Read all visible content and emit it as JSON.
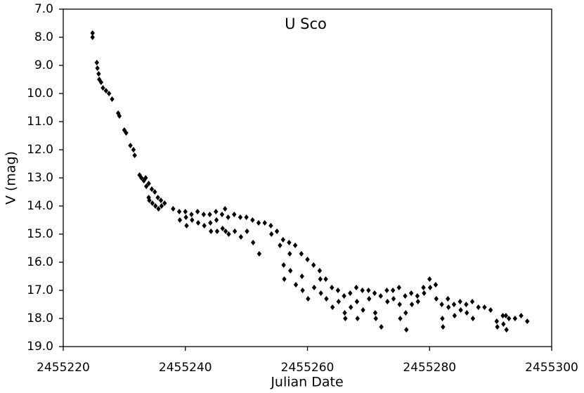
{
  "chart_data": {
    "type": "scatter",
    "title": "U Sco",
    "x_label": "Julian Date",
    "y_label": "V (mag)",
    "color": "#000000",
    "x": [
      2455224.8,
      2455224.8,
      2455225.5,
      2455225.6,
      2455225.8,
      2455225.9,
      2455226.2,
      2455226.5,
      2455227.0,
      2455227.5,
      2455228.0,
      2455229.0,
      2455229.2,
      2455230.0,
      2455230.3,
      2455231.0,
      2455231.5,
      2455231.7,
      2455232.5,
      2455232.8,
      2455233.2,
      2455233.5,
      2455233.6,
      2455234.0,
      2455234.0,
      2455234.1,
      2455234.5,
      2455234.6,
      2455235.0,
      2455235.1,
      2455235.5,
      2455235.6,
      2455236.0,
      2455236.1,
      2455236.6,
      2455238.0,
      2455239.0,
      2455239.1,
      2455240.0,
      2455240.1,
      2455240.2,
      2455241.0,
      2455241.1,
      2455242.0,
      2455242.1,
      2455243.0,
      2455243.1,
      2455244.0,
      2455244.1,
      2455244.2,
      2455245.0,
      2455245.1,
      2455245.2,
      2455246.0,
      2455246.1,
      2455246.5,
      2455246.6,
      2455247.0,
      2455247.1,
      2455248.0,
      2455248.1,
      2455249.0,
      2455249.1,
      2455250.0,
      2455250.1,
      2455251.0,
      2455251.1,
      2455252.0,
      2455252.1,
      2455253.0,
      2455254.0,
      2455254.1,
      2455255.0,
      2455255.5,
      2455256.0,
      2455256.1,
      2455256.2,
      2455257.0,
      2455257.1,
      2455257.2,
      2455258.0,
      2455258.1,
      2455259.0,
      2455259.1,
      2455259.2,
      2455260.0,
      2455260.1,
      2455261.0,
      2455261.1,
      2455262.0,
      2455262.1,
      2455262.2,
      2455263.0,
      2455263.1,
      2455264.0,
      2455264.1,
      2455265.0,
      2455265.1,
      2455266.0,
      2455266.1,
      2455266.2,
      2455267.0,
      2455267.1,
      2455268.0,
      2455268.1,
      2455268.2,
      2455269.0,
      2455269.1,
      2455270.0,
      2455270.1,
      2455271.0,
      2455271.1,
      2455271.2,
      2455272.0,
      2455272.1,
      2455273.0,
      2455273.1,
      2455274.0,
      2455274.1,
      2455275.0,
      2455275.1,
      2455275.2,
      2455276.0,
      2455276.1,
      2455276.2,
      2455277.0,
      2455277.1,
      2455278.0,
      2455278.1,
      2455279.0,
      2455279.1,
      2455280.0,
      2455280.1,
      2455281.0,
      2455281.1,
      2455282.0,
      2455282.1,
      2455282.2,
      2455283.0,
      2455283.1,
      2455284.0,
      2455284.1,
      2455285.0,
      2455285.1,
      2455286.0,
      2455286.1,
      2455287.0,
      2455287.1,
      2455288.0,
      2455289.0,
      2455290.0,
      2455291.0,
      2455291.1,
      2455292.0,
      2455292.1,
      2455292.5,
      2455292.6,
      2455293.0,
      2455294.0,
      2455295.0,
      2455296.0
    ],
    "values": [
      7.85,
      8.0,
      8.9,
      9.1,
      9.3,
      9.5,
      9.6,
      9.8,
      9.9,
      10.0,
      10.2,
      10.7,
      10.8,
      11.3,
      11.4,
      11.85,
      12.0,
      12.2,
      12.9,
      13.0,
      13.1,
      13.0,
      13.3,
      13.2,
      13.7,
      13.8,
      13.4,
      13.9,
      13.5,
      14.0,
      13.7,
      14.1,
      13.8,
      14.0,
      13.9,
      14.1,
      14.2,
      14.5,
      14.2,
      14.4,
      14.7,
      14.3,
      14.5,
      14.2,
      14.6,
      14.3,
      14.7,
      14.3,
      14.6,
      14.9,
      14.2,
      14.5,
      14.9,
      14.3,
      14.8,
      14.1,
      14.9,
      14.4,
      15.0,
      14.3,
      14.9,
      14.4,
      15.1,
      14.4,
      14.9,
      14.5,
      15.3,
      14.6,
      15.7,
      14.6,
      14.7,
      15.0,
      14.9,
      15.4,
      15.2,
      16.1,
      16.6,
      15.3,
      15.7,
      16.3,
      15.4,
      16.8,
      15.7,
      16.5,
      17.0,
      15.9,
      17.3,
      16.1,
      16.9,
      16.3,
      16.6,
      17.1,
      16.6,
      17.3,
      16.9,
      17.6,
      17.0,
      17.4,
      17.2,
      17.8,
      18.0,
      17.1,
      17.6,
      16.9,
      17.4,
      18.0,
      17.0,
      17.7,
      17.0,
      17.3,
      17.1,
      17.8,
      18.0,
      17.2,
      18.3,
      17.0,
      17.4,
      17.0,
      17.3,
      16.9,
      17.5,
      18.0,
      17.2,
      17.8,
      18.4,
      17.1,
      17.5,
      17.2,
      17.4,
      16.9,
      17.1,
      16.6,
      16.9,
      16.8,
      17.3,
      17.5,
      18.0,
      18.3,
      17.3,
      17.6,
      17.5,
      17.9,
      17.4,
      17.7,
      17.5,
      17.8,
      17.4,
      18.0,
      17.6,
      17.6,
      17.7,
      18.1,
      18.3,
      17.9,
      18.2,
      17.9,
      18.4,
      18.0,
      18.0,
      17.9,
      18.1
    ],
    "xlim": [
      2455220,
      2455300
    ],
    "xticks": [
      2455220,
      2455240,
      2455260,
      2455280,
      2455300
    ],
    "ylim": [
      7,
      19
    ],
    "y_inverted": true,
    "yticks": [
      {
        "value": 7,
        "label": "7.0"
      },
      {
        "value": 8,
        "label": "8.0"
      },
      {
        "value": 9,
        "label": "9.0"
      },
      {
        "value": 10,
        "label": "10.0"
      },
      {
        "value": 11,
        "label": "11.0"
      },
      {
        "value": 12,
        "label": "12.0"
      },
      {
        "value": 13,
        "label": "13.0"
      },
      {
        "value": 14,
        "label": "14.0"
      },
      {
        "value": 15,
        "label": "15.0"
      },
      {
        "value": 16,
        "label": "16.0"
      },
      {
        "value": 17,
        "label": "17.0"
      },
      {
        "value": 18,
        "label": "18.0"
      },
      {
        "value": 19,
        "label": "19.0"
      }
    ],
    "grid": false
  }
}
